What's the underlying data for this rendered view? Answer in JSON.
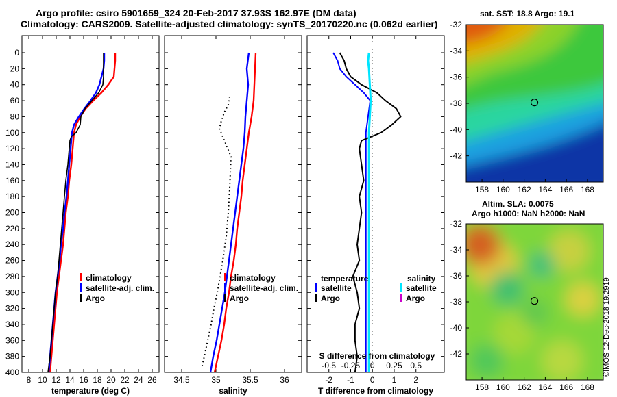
{
  "title_line1": "Argo profile: csiro 5901659_324 20-Feb-2017 37.93S 162.97E (DM data)",
  "title_line2": "Climatology: CARS2009. Satellite-adjusted climatology: synTS_20170220.nc (0.062d earlier)",
  "sst_title": "sat. SST: 18.8 Argo: 19.1",
  "sla_title_line1": "Altim. SLA: 0.0075",
  "sla_title_line2": "Argo h1000: NaN h2000: NaN",
  "copyright": "©IMOS 12-Dec-2018 19:2919",
  "colors": {
    "climatology": "#ff0000",
    "satellite": "#0000ff",
    "argo": "#000000",
    "sal_satellite": "#00e5ff",
    "sal_argo": "#cc00cc"
  },
  "depth_ticks": [
    "0",
    "20",
    "40",
    "60",
    "80",
    "100",
    "120",
    "140",
    "160",
    "180",
    "200",
    "220",
    "240",
    "260",
    "280",
    "300",
    "320",
    "340",
    "360",
    "380",
    "400"
  ],
  "chart_data": [
    {
      "type": "line",
      "title": "temperature",
      "xlabel": "temperature (deg C)",
      "ylabel": "depth",
      "xlim": [
        7,
        27
      ],
      "ylim": [
        400,
        0
      ],
      "x_ticks": [
        "8",
        "10",
        "12",
        "14",
        "16",
        "18",
        "20",
        "22",
        "24",
        "26"
      ],
      "legend": [
        "climatology",
        "satellite-adj. clim.",
        "Argo"
      ],
      "series": [
        {
          "name": "climatology",
          "depth": [
            0,
            10,
            20,
            30,
            40,
            50,
            60,
            70,
            80,
            90,
            100,
            120,
            140,
            160,
            180,
            200,
            220,
            240,
            260,
            280,
            300,
            320,
            340,
            360,
            380,
            400
          ],
          "values": [
            20.6,
            20.6,
            20.5,
            20.4,
            19.6,
            18.6,
            17.4,
            16.3,
            15.5,
            14.9,
            14.6,
            14.4,
            14.2,
            13.9,
            13.7,
            13.4,
            13.2,
            13.0,
            12.7,
            12.4,
            12.1,
            11.9,
            11.7,
            11.5,
            11.3,
            11.1
          ]
        },
        {
          "name": "satellite-adj. clim.",
          "depth": [
            0,
            10,
            20,
            30,
            40,
            50,
            60,
            70,
            80,
            90,
            100,
            120,
            140,
            160,
            180,
            200,
            220,
            240,
            260,
            280,
            300,
            320,
            340,
            360,
            380,
            400
          ],
          "values": [
            19.0,
            19.0,
            18.9,
            18.6,
            18.3,
            17.8,
            17.0,
            16.1,
            15.3,
            14.6,
            14.3,
            14.1,
            13.9,
            13.7,
            13.5,
            13.2,
            13.0,
            12.7,
            12.5,
            12.2,
            11.9,
            11.7,
            11.5,
            11.3,
            11.1,
            10.9
          ]
        },
        {
          "name": "Argo",
          "depth": [
            0,
            10,
            20,
            30,
            40,
            50,
            60,
            70,
            80,
            90,
            100,
            105,
            110,
            120,
            140,
            160,
            180,
            200,
            220,
            240,
            260,
            280,
            300,
            320,
            340,
            360,
            380,
            400
          ],
          "values": [
            18.9,
            18.9,
            18.9,
            18.9,
            18.8,
            18.2,
            17.2,
            16.2,
            15.6,
            15.5,
            14.9,
            14.2,
            14.0,
            13.9,
            13.7,
            13.4,
            13.2,
            13.0,
            12.8,
            12.6,
            12.4,
            12.2,
            11.9,
            11.7,
            11.5,
            11.3,
            11.1,
            10.8
          ]
        }
      ]
    },
    {
      "type": "line",
      "title": "salinity",
      "xlabel": "salinity",
      "ylabel": "depth",
      "xlim": [
        34.25,
        36.25
      ],
      "ylim": [
        400,
        0
      ],
      "x_ticks": [
        "34.5",
        "35",
        "35.5",
        "36"
      ],
      "legend": [
        "climatology",
        "satellite-adj. clim.",
        "Argo"
      ],
      "series": [
        {
          "name": "climatology",
          "depth": [
            0,
            20,
            40,
            60,
            80,
            100,
            120,
            140,
            160,
            180,
            200,
            220,
            240,
            260,
            280,
            300,
            320,
            340,
            360,
            380,
            400
          ],
          "values": [
            35.58,
            35.57,
            35.56,
            35.55,
            35.52,
            35.48,
            35.45,
            35.42,
            35.39,
            35.37,
            35.34,
            35.31,
            35.29,
            35.26,
            35.22,
            35.19,
            35.15,
            35.12,
            35.08,
            35.03,
            34.98
          ]
        },
        {
          "name": "satellite-adj. clim.",
          "depth": [
            0,
            20,
            40,
            60,
            80,
            100,
            120,
            140,
            160,
            180,
            200,
            220,
            240,
            260,
            280,
            300,
            320,
            340,
            360,
            380,
            400
          ],
          "values": [
            35.48,
            35.45,
            35.47,
            35.45,
            35.43,
            35.42,
            35.4,
            35.37,
            35.34,
            35.31,
            35.28,
            35.25,
            35.22,
            35.19,
            35.16,
            35.13,
            35.09,
            35.05,
            35.01,
            34.96,
            34.92
          ]
        },
        {
          "name": "Argo",
          "depth": [
            55,
            65,
            75,
            85,
            95,
            130,
            150,
            170,
            200,
            230,
            260,
            280,
            300,
            320,
            340,
            360,
            380,
            395
          ],
          "values": [
            35.2,
            35.18,
            35.12,
            35.08,
            35.05,
            35.22,
            35.21,
            35.2,
            35.18,
            35.15,
            35.1,
            35.06,
            35.02,
            34.97,
            34.93,
            34.88,
            34.83,
            34.79
          ]
        }
      ]
    },
    {
      "type": "line",
      "title": "difference from climatology",
      "xlabel": "T difference from climatology",
      "xlabel_top": "S difference from climatology",
      "ylabel": "depth",
      "xlim": [
        -3,
        3.3
      ],
      "ylim": [
        400,
        0
      ],
      "x_ticks": [
        "-2",
        "-1",
        "0",
        "1",
        "2"
      ],
      "s_ticks": [
        "-0.5",
        "-0.25",
        "0",
        "0.25",
        "0.5"
      ],
      "legend_temperature_header": "temperature",
      "legend_salinity_header": "salinity",
      "legend": [
        "satellite",
        "Argo"
      ],
      "series": [
        {
          "name": "temperature satellite",
          "depth": [
            0,
            10,
            20,
            30,
            40,
            50,
            60,
            80,
            100,
            150,
            200,
            250,
            300,
            350,
            400
          ],
          "values": [
            -1.8,
            -1.6,
            -1.5,
            -1.2,
            -0.8,
            -0.4,
            -0.1,
            -0.2,
            -0.3,
            -0.3,
            -0.3,
            -0.3,
            -0.3,
            -0.3,
            -0.3
          ]
        },
        {
          "name": "temperature Argo",
          "depth": [
            0,
            10,
            20,
            30,
            40,
            50,
            60,
            70,
            80,
            90,
            100,
            110,
            120,
            140,
            160,
            180,
            200,
            220,
            240,
            260,
            280,
            300,
            320,
            340,
            360,
            380,
            400
          ],
          "values": [
            -1.5,
            -1.3,
            -1.2,
            -1.0,
            -0.5,
            0.2,
            0.6,
            1.1,
            1.3,
            0.9,
            0.4,
            -0.5,
            -0.6,
            -0.5,
            -0.4,
            -0.6,
            -0.5,
            -0.6,
            -0.7,
            -0.6,
            -0.9,
            -0.7,
            -0.6,
            -0.8,
            -0.8,
            -0.7,
            -0.8
          ]
        },
        {
          "name": "salinity satellite",
          "depth": [
            0,
            10,
            20,
            40,
            60,
            80,
            100,
            200,
            300,
            400
          ],
          "values": [
            -0.04,
            -0.05,
            -0.04,
            -0.03,
            -0.02,
            -0.03,
            -0.04,
            -0.04,
            -0.04,
            -0.04
          ]
        },
        {
          "name": "salinity Argo",
          "depth": [],
          "values": []
        }
      ]
    },
    {
      "type": "heatmap",
      "title": "sat. SST: 18.8 Argo: 19.1",
      "x_ticks": [
        "158",
        "160",
        "162",
        "164",
        "166",
        "168"
      ],
      "y_ticks": [
        "-32",
        "-34",
        "-36",
        "-38",
        "-40",
        "-42"
      ],
      "xlim": [
        156.5,
        169.5
      ],
      "ylim": [
        -44,
        -32
      ],
      "argo_position": {
        "lon": 162.97,
        "lat": -37.93
      }
    },
    {
      "type": "heatmap",
      "title": "Altim. SLA: 0.0075",
      "x_ticks": [
        "158",
        "160",
        "162",
        "164",
        "166",
        "168"
      ],
      "y_ticks": [
        "-32",
        "-34",
        "-36",
        "-38",
        "-40",
        "-42"
      ],
      "xlim": [
        156.5,
        169.5
      ],
      "ylim": [
        -44,
        -32
      ],
      "argo_position": {
        "lon": 162.97,
        "lat": -37.93
      }
    }
  ]
}
